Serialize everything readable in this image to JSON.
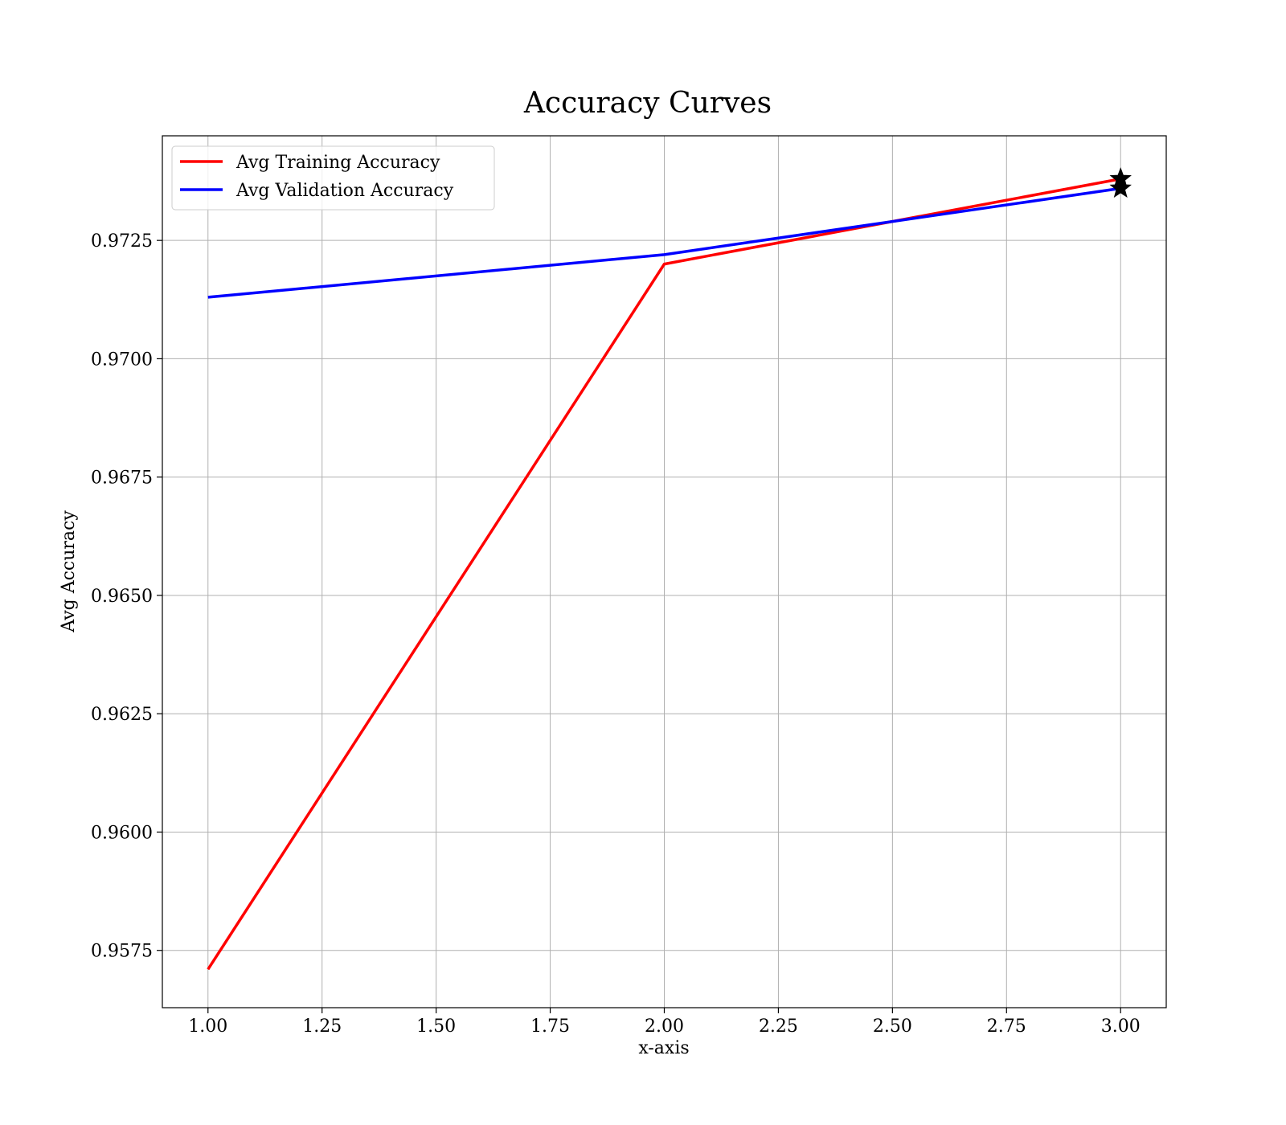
{
  "chart_data": {
    "type": "line",
    "title": "Accuracy Curves",
    "xlabel": "x-axis",
    "ylabel": "Avg Accuracy",
    "x": [
      1,
      2,
      3
    ],
    "xlim": [
      0.9,
      3.1
    ],
    "ylim": [
      0.95629,
      0.97471
    ],
    "xticks": [
      1.0,
      1.25,
      1.5,
      1.75,
      2.0,
      2.25,
      2.5,
      2.75,
      3.0
    ],
    "xtick_labels": [
      "1.00",
      "1.25",
      "1.50",
      "1.75",
      "2.00",
      "2.25",
      "2.50",
      "2.75",
      "3.00"
    ],
    "yticks": [
      0.9575,
      0.96,
      0.9625,
      0.965,
      0.9675,
      0.97,
      0.9725
    ],
    "ytick_labels": [
      "0.9575",
      "0.9600",
      "0.9625",
      "0.9650",
      "0.9675",
      "0.9700",
      "0.9725"
    ],
    "grid": true,
    "legend_position": "top-left",
    "series": [
      {
        "name": "Avg Training Accuracy",
        "color": "#ff0000",
        "values": [
          0.9571,
          0.972,
          0.9738
        ],
        "best_marker": {
          "x": 3,
          "y": 0.9738,
          "shape": "star"
        }
      },
      {
        "name": "Avg Validation Accuracy",
        "color": "#0000ff",
        "values": [
          0.9713,
          0.9722,
          0.9736
        ],
        "best_marker": {
          "x": 3,
          "y": 0.9736,
          "shape": "star"
        }
      }
    ]
  }
}
